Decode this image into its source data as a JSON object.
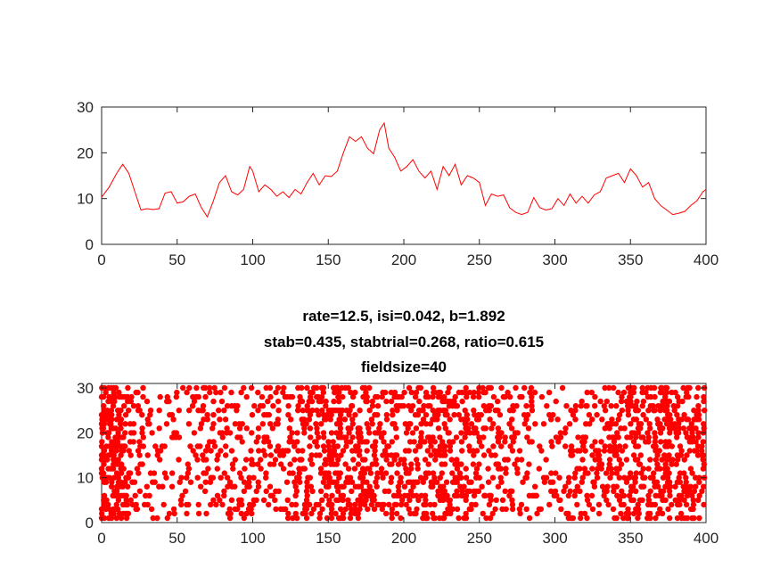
{
  "chart_data": [
    {
      "type": "line",
      "title": "",
      "xlabel": "",
      "ylabel": "",
      "xlim": [
        0,
        400
      ],
      "ylim": [
        0,
        30
      ],
      "xticks": [
        0,
        50,
        100,
        150,
        200,
        250,
        300,
        350,
        400
      ],
      "yticks": [
        0,
        10,
        20,
        30
      ],
      "grid": false,
      "color": "#ff0000",
      "series": [
        {
          "x": [
            0,
            5,
            10,
            14,
            18,
            22,
            26,
            30,
            34,
            38,
            42,
            46,
            50,
            54,
            58,
            62,
            66,
            70,
            74,
            78,
            82,
            86,
            90,
            94,
            98,
            100,
            104,
            108,
            112,
            116,
            120,
            124,
            128,
            132,
            136,
            140,
            144,
            148,
            152,
            156,
            160,
            164,
            168,
            172,
            176,
            180,
            184,
            187,
            190,
            194,
            198,
            202,
            206,
            210,
            214,
            218,
            222,
            226,
            230,
            234,
            238,
            242,
            246,
            250,
            254,
            258,
            262,
            266,
            270,
            274,
            278,
            282,
            286,
            290,
            294,
            298,
            302,
            306,
            310,
            314,
            318,
            322,
            326,
            330,
            334,
            338,
            342,
            346,
            350,
            354,
            358,
            362,
            366,
            370,
            374,
            378,
            382,
            386,
            390,
            394,
            398,
            400
          ],
          "y": [
            10.3,
            12.5,
            15.5,
            17.5,
            15.5,
            11.5,
            7.5,
            7.8,
            7.6,
            7.8,
            11.2,
            11.5,
            9.0,
            9.3,
            10.5,
            11.0,
            8.0,
            6.0,
            9.5,
            13.5,
            15.0,
            11.5,
            10.8,
            12.0,
            17.0,
            16.0,
            11.5,
            13.0,
            12.0,
            10.5,
            11.5,
            10.2,
            12.0,
            11.0,
            13.5,
            15.5,
            13.0,
            15.0,
            14.8,
            16.0,
            20.0,
            23.5,
            22.5,
            23.5,
            21.0,
            19.8,
            25.0,
            26.5,
            21.0,
            19.0,
            16.0,
            17.0,
            18.5,
            16.0,
            14.5,
            16.0,
            12.0,
            17.0,
            15.0,
            17.5,
            13.0,
            15.0,
            14.5,
            13.5,
            8.5,
            11.0,
            10.5,
            10.8,
            8.0,
            7.0,
            6.5,
            7.0,
            10.2,
            8.0,
            7.5,
            7.8,
            10.0,
            8.5,
            11.0,
            9.0,
            10.5,
            9.0,
            10.8,
            11.5,
            14.5,
            15.0,
            15.5,
            13.5,
            16.5,
            15.0,
            12.5,
            13.5,
            10.0,
            8.5,
            7.5,
            6.5,
            6.8,
            7.2,
            8.5,
            9.5,
            11.5,
            12.0
          ]
        }
      ]
    },
    {
      "type": "scatter",
      "title_lines": [
        "rate=12.5, isi=0.042, b=1.892",
        "stab=0.435, stabtrial=0.268, ratio=0.615",
        "fieldsize=40"
      ],
      "xlabel": "",
      "ylabel": "",
      "xlim": [
        0,
        400
      ],
      "ylim": [
        0,
        31
      ],
      "xticks": [
        0,
        50,
        100,
        150,
        200,
        250,
        300,
        350,
        400
      ],
      "yticks": [
        0,
        10,
        20,
        30
      ],
      "grid": false,
      "color": "#ff0000",
      "marker": "filled-circle",
      "trials": 30,
      "density_profile": {
        "x": [
          0,
          10,
          20,
          30,
          40,
          60,
          80,
          100,
          120,
          140,
          160,
          180,
          200,
          220,
          240,
          260,
          280,
          300,
          320,
          340,
          360,
          380,
          400
        ],
        "relative_density": [
          1.0,
          1.0,
          0.55,
          0.28,
          0.25,
          0.28,
          0.33,
          0.3,
          0.38,
          0.5,
          0.62,
          0.55,
          0.5,
          0.52,
          0.5,
          0.38,
          0.28,
          0.3,
          0.38,
          0.52,
          0.62,
          0.6,
          0.7
        ]
      }
    }
  ]
}
